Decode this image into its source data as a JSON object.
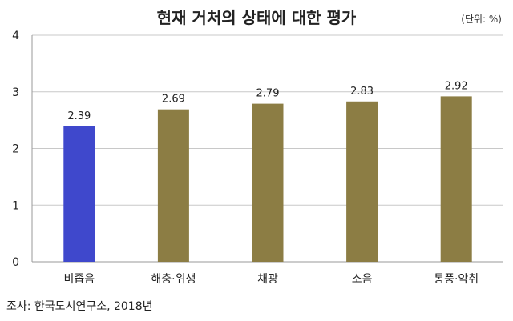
{
  "chart_data": {
    "type": "bar",
    "title": "현재 거처의 상태에 대한 평가",
    "unit_note": "(단위: %)",
    "categories": [
      "비좁음",
      "해충·위생",
      "채광",
      "소음",
      "통풍·악취"
    ],
    "values": [
      2.39,
      2.69,
      2.79,
      2.83,
      2.92
    ],
    "data_labels": [
      "2.39",
      "2.69",
      "2.79",
      "2.83",
      "2.92"
    ],
    "ylim": [
      0,
      4
    ],
    "yticks": [
      "0",
      "1",
      "2",
      "3",
      "4"
    ],
    "xlabel": "",
    "ylabel": "",
    "grid": "horizontal",
    "colors": [
      "#3f48cc",
      "#8c7d44",
      "#8c7d44",
      "#8c7d44",
      "#8c7d44"
    ],
    "source": "조사: 한국도시연구소, 2018년"
  }
}
